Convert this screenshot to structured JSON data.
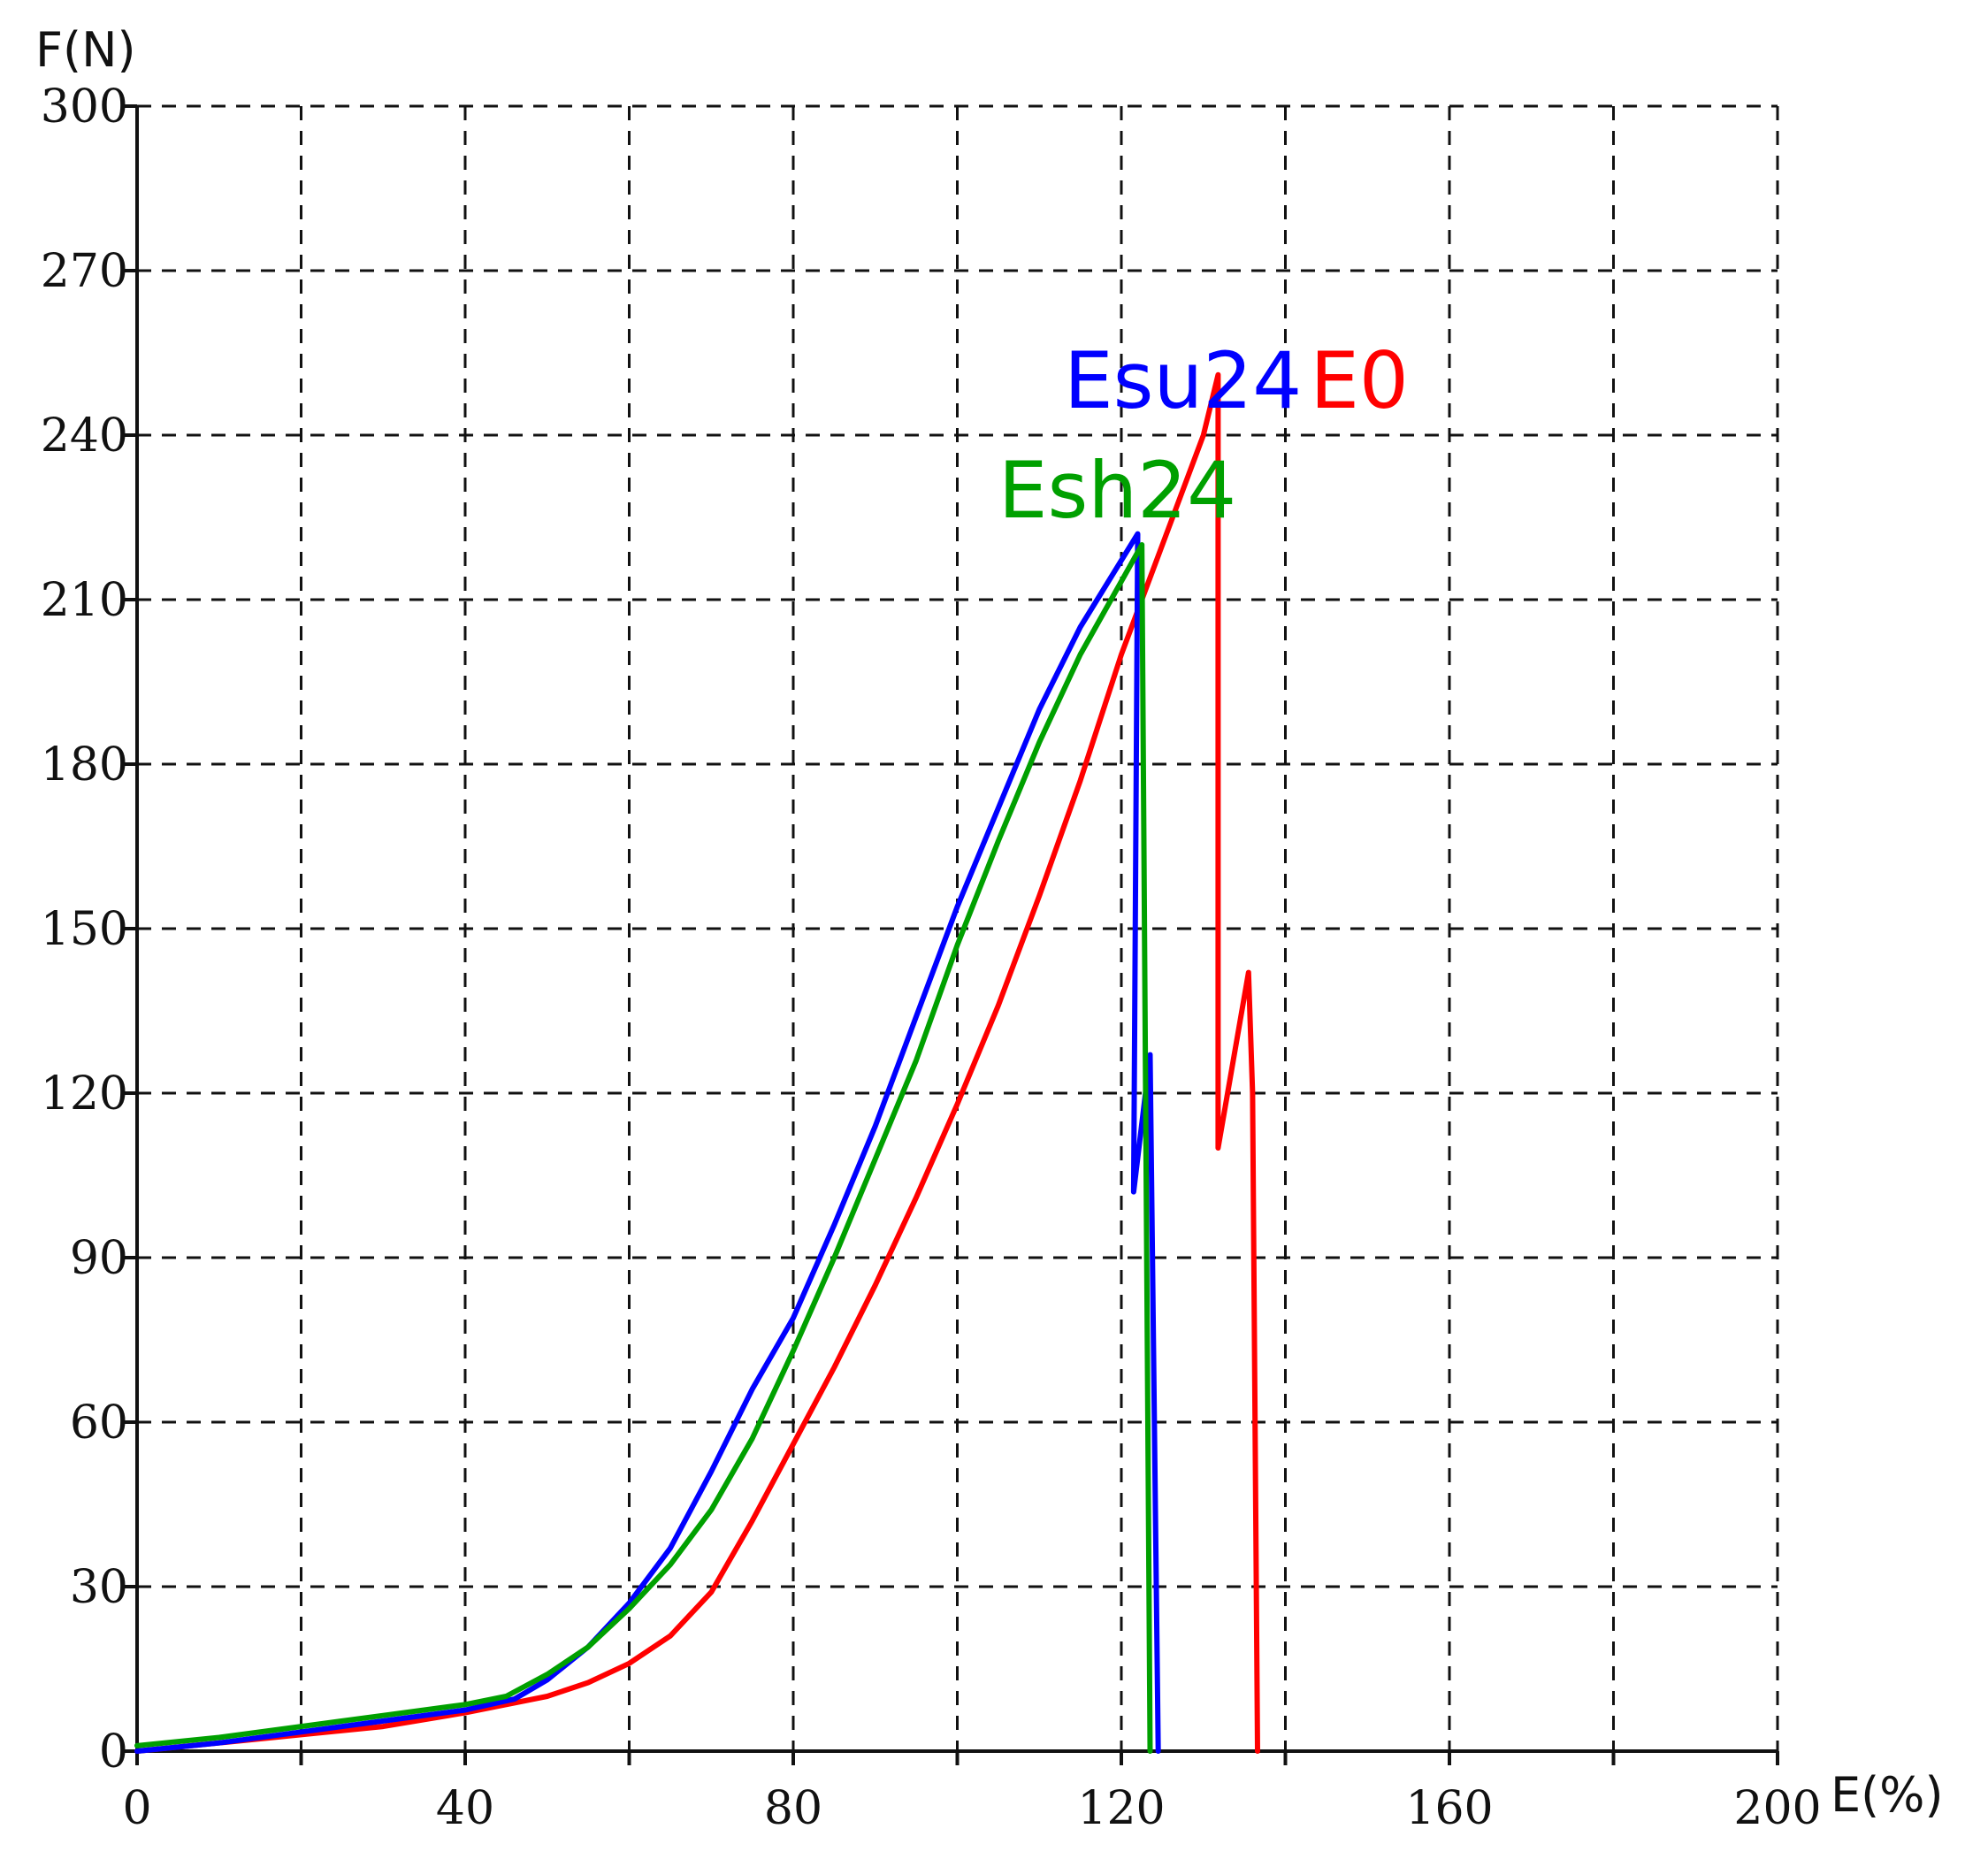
{
  "chart_data": {
    "type": "line",
    "title": "",
    "xlabel": "E(%)",
    "ylabel": "F(N)",
    "xlim": [
      0,
      200
    ],
    "ylim": [
      0,
      300
    ],
    "x_ticks": [
      0,
      40,
      80,
      120,
      160,
      200
    ],
    "x_tick_labels": [
      "0",
      "40",
      "80",
      "120",
      "160",
      "200"
    ],
    "y_ticks": [
      0,
      30,
      60,
      90,
      120,
      150,
      180,
      210,
      240,
      270,
      300
    ],
    "y_tick_labels": [
      "0",
      "30",
      "60",
      "90",
      "120",
      "150",
      "180",
      "210",
      "240",
      "270",
      "300"
    ],
    "grid": true,
    "grid_style": "dashed",
    "grid_x_step": 20,
    "series": [
      {
        "name": "E0",
        "color": "#ff0000",
        "points": [
          [
            0,
            0
          ],
          [
            10,
            1.5
          ],
          [
            20,
            3
          ],
          [
            30,
            4.5
          ],
          [
            40,
            7
          ],
          [
            50,
            10
          ],
          [
            55,
            12.5
          ],
          [
            60,
            16
          ],
          [
            65,
            21
          ],
          [
            70,
            29
          ],
          [
            75,
            42
          ],
          [
            80,
            56
          ],
          [
            85,
            70
          ],
          [
            90,
            85
          ],
          [
            95,
            101
          ],
          [
            100,
            118
          ],
          [
            105,
            136
          ],
          [
            110,
            156
          ],
          [
            115,
            177
          ],
          [
            120,
            200
          ],
          [
            125,
            220
          ],
          [
            130,
            240
          ],
          [
            131.8,
            251
          ],
          [
            131.8,
            110
          ],
          [
            135.5,
            142
          ],
          [
            136,
            120
          ],
          [
            136.6,
            0
          ]
        ]
      },
      {
        "name": "Esu24",
        "color": "#0000ff",
        "points": [
          [
            0,
            0
          ],
          [
            10,
            1.5
          ],
          [
            20,
            3.5
          ],
          [
            30,
            5.5
          ],
          [
            40,
            7.5
          ],
          [
            46,
            9.5
          ],
          [
            50,
            13
          ],
          [
            55,
            19
          ],
          [
            60,
            27
          ],
          [
            65,
            37
          ],
          [
            70,
            51
          ],
          [
            75,
            66
          ],
          [
            80,
            79
          ],
          [
            85,
            96
          ],
          [
            90,
            114
          ],
          [
            95,
            134
          ],
          [
            100,
            154
          ],
          [
            105,
            172
          ],
          [
            110,
            190
          ],
          [
            115,
            205
          ],
          [
            122,
            222
          ],
          [
            121.5,
            102
          ],
          [
            123.5,
            127
          ],
          [
            124.5,
            0
          ]
        ]
      },
      {
        "name": "Esh24",
        "color": "#00a000",
        "points": [
          [
            0,
            1
          ],
          [
            10,
            2.5
          ],
          [
            20,
            4.5
          ],
          [
            30,
            6.5
          ],
          [
            40,
            8.5
          ],
          [
            45,
            10
          ],
          [
            50,
            14
          ],
          [
            55,
            19
          ],
          [
            60,
            26
          ],
          [
            65,
            34
          ],
          [
            69,
            42
          ],
          [
            70,
            44
          ],
          [
            75,
            57
          ],
          [
            80,
            73
          ],
          [
            85,
            90
          ],
          [
            90,
            108
          ],
          [
            95,
            126
          ],
          [
            100,
            147
          ],
          [
            105,
            166
          ],
          [
            110,
            184
          ],
          [
            115,
            200
          ],
          [
            122.5,
            220
          ],
          [
            123.5,
            0
          ]
        ]
      }
    ],
    "annotations": [
      {
        "text": "Esu24",
        "color": "#0000ff",
        "x": 113,
        "y": 245
      },
      {
        "text": "E0",
        "color": "#ff0000",
        "x": 143,
        "y": 245
      },
      {
        "text": "Esh24",
        "color": "#00a000",
        "x": 105,
        "y": 225
      }
    ]
  }
}
